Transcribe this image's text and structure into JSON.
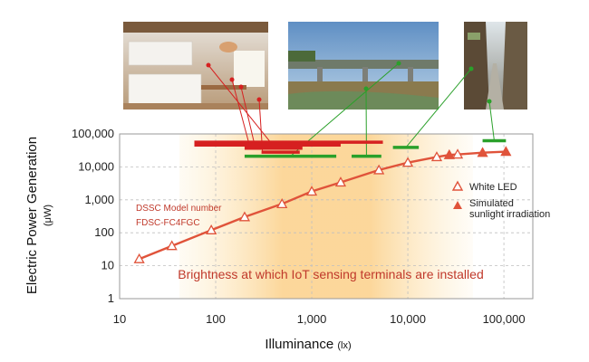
{
  "chart_data": {
    "type": "scatter",
    "xlabel": "Illuminance",
    "xunit": "(lx)",
    "ylabel": "Electric Power Generation",
    "yunit": "(μW)",
    "xscale": "log",
    "yscale": "log",
    "xlim": [
      10,
      200000
    ],
    "ylim": [
      1,
      100000
    ],
    "x_ticks": [
      "10",
      "100",
      "1,000",
      "10,000",
      "100,000"
    ],
    "x_tick_values": [
      10,
      100,
      1000,
      10000,
      100000
    ],
    "y_ticks": [
      "100,000",
      "10,000",
      "1,000",
      "100",
      "10",
      "1"
    ],
    "y_tick_values": [
      100000,
      10000,
      1000,
      100,
      10,
      1
    ],
    "grid": true,
    "series": [
      {
        "name": "White LED",
        "marker": "open-triangle",
        "color": "#e0533a",
        "points": [
          {
            "x": 16,
            "y": 16
          },
          {
            "x": 35,
            "y": 40
          },
          {
            "x": 90,
            "y": 120
          },
          {
            "x": 200,
            "y": 300
          },
          {
            "x": 490,
            "y": 750
          },
          {
            "x": 1000,
            "y": 1800
          },
          {
            "x": 2000,
            "y": 3400
          },
          {
            "x": 5000,
            "y": 8000
          },
          {
            "x": 10000,
            "y": 13500
          },
          {
            "x": 20000,
            "y": 20000
          },
          {
            "x": 33000,
            "y": 24000
          }
        ]
      },
      {
        "name": "Simulated sunlight irradiation",
        "marker": "filled-triangle",
        "color": "#e0533a",
        "points": [
          {
            "x": 27000,
            "y": 23000
          },
          {
            "x": 60000,
            "y": 27000
          },
          {
            "x": 105000,
            "y": 29000
          }
        ]
      }
    ],
    "legend": {
      "placement": "right",
      "entries": [
        "White LED",
        "Simulated sunlight irradiation"
      ]
    },
    "shaded_band": {
      "x_from": 100,
      "x_to": 20000,
      "color": "#f5b03c"
    },
    "ranges": [
      {
        "group": "indoor",
        "color": "#d62020",
        "x_from": 60,
        "x_to": 5500,
        "y": 56000
      },
      {
        "group": "indoor",
        "color": "#d62020",
        "x_from": 60,
        "x_to": 2000,
        "y": 46000
      },
      {
        "group": "indoor",
        "color": "#d62020",
        "x_from": 200,
        "x_to": 800,
        "y": 37000
      },
      {
        "group": "indoor",
        "color": "#d62020",
        "x_from": 300,
        "x_to": 750,
        "y": 28000
      },
      {
        "group": "outdoor",
        "color": "#2aa02a",
        "x_from": 200,
        "x_to": 1800,
        "y": 21000
      },
      {
        "group": "outdoor",
        "color": "#2aa02a",
        "x_from": 2600,
        "x_to": 5300,
        "y": 21000
      },
      {
        "group": "outdoor",
        "color": "#2aa02a",
        "x_from": 7000,
        "x_to": 13000,
        "y": 39000
      },
      {
        "group": "outdoor",
        "color": "#2aa02a",
        "x_from": 60000,
        "x_to": 105000,
        "y": 62000
      }
    ],
    "annotations": {
      "model_label": "DSSC Model number",
      "model_number": "FDSC-FC4FGC",
      "band_caption": "Brightness at which IoT sensing terminals are installed"
    }
  },
  "photos": [
    {
      "name": "kitchen-photo"
    },
    {
      "name": "bridge-photo"
    },
    {
      "name": "alley-photo"
    }
  ],
  "colors": {
    "curve": "#e0533a",
    "indoor": "#d62020",
    "outdoor": "#2aa02a",
    "band": "#f5b03c",
    "caption": "#c0392b"
  }
}
